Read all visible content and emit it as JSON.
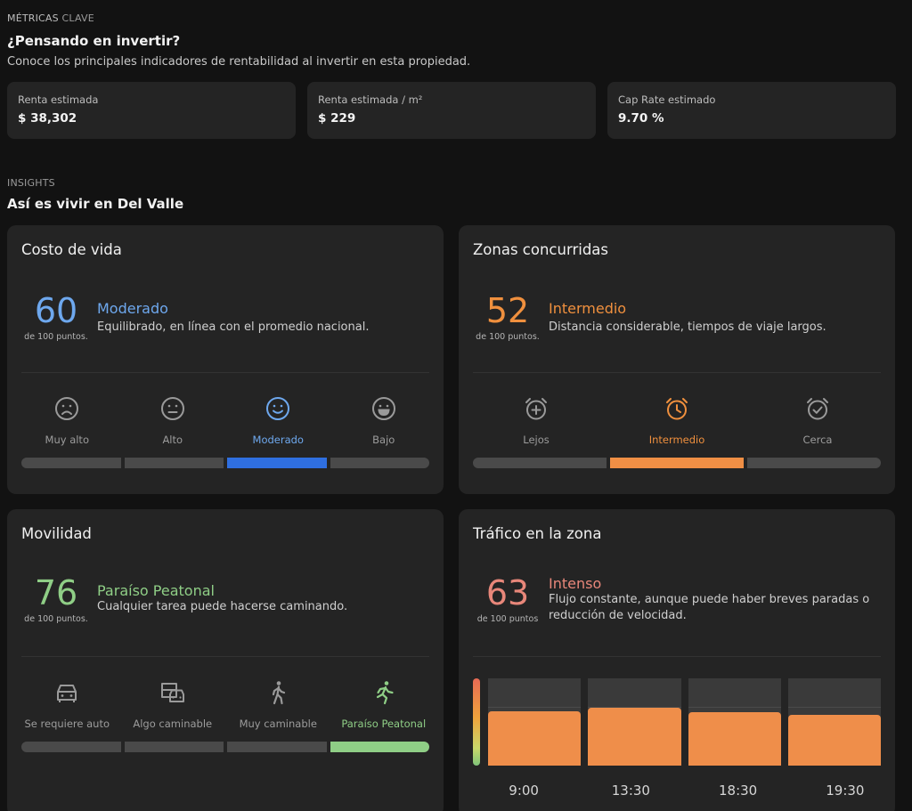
{
  "metrics": {
    "eyebrow_main": "MÉTRICAS",
    "eyebrow_rest": "CLAVE",
    "title": "¿Pensando en invertir?",
    "description": "Conoce los principales indicadores de rentabilidad al invertir en esta propiedad.",
    "items": [
      {
        "label": "Renta estimada",
        "value": "$ 38,302"
      },
      {
        "label": "Renta estimada / m²",
        "value": "$ 229"
      },
      {
        "label": "Cap Rate estimado",
        "value": "9.70 %"
      }
    ]
  },
  "insights": {
    "eyebrow": "INSIGHTS",
    "title": "Así es vivir en Del Valle"
  },
  "cards": {
    "costo": {
      "title": "Costo de vida",
      "score": "60",
      "score_of": "de 100 puntos.",
      "level": "Moderado",
      "description": "Equilibrado, en línea con el promedio nacional.",
      "color": "#6ea8ee",
      "active_color": "#2f6fe0",
      "options": [
        {
          "label": "Muy alto",
          "icon": "sad-face-icon"
        },
        {
          "label": "Alto",
          "icon": "neutral-face-icon"
        },
        {
          "label": "Moderado",
          "icon": "smile-face-icon"
        },
        {
          "label": "Bajo",
          "icon": "grin-face-icon"
        }
      ],
      "active_index": 2
    },
    "zonas": {
      "title": "Zonas concurridas",
      "score": "52",
      "score_of": "de 100 puntos.",
      "level": "Intermedio",
      "description": "Distancia considerable, tiempos de viaje largos.",
      "color": "#f0903e",
      "active_color": "#f08f45",
      "options": [
        {
          "label": "Lejos",
          "icon": "alarm-plus-icon"
        },
        {
          "label": "Intermedio",
          "icon": "alarm-clock-icon"
        },
        {
          "label": "Cerca",
          "icon": "alarm-check-icon"
        }
      ],
      "active_index": 1
    },
    "movilidad": {
      "title": "Movilidad",
      "score": "76",
      "score_of": "de 100 puntos.",
      "level": "Paraíso Peatonal",
      "description": "Cualquier tarea puede hacerse caminando.",
      "color": "#8fce86",
      "active_color": "#8fce86",
      "options": [
        {
          "label": "Se requiere auto",
          "icon": "car-icon"
        },
        {
          "label": "Algo caminable",
          "icon": "car-bus-icon"
        },
        {
          "label": "Muy caminable",
          "icon": "walking-icon"
        },
        {
          "label": "Paraíso Peatonal",
          "icon": "running-icon"
        }
      ],
      "active_index": 3
    },
    "trafico": {
      "title": "Tráfico en la zona",
      "score": "63",
      "score_of": "de 100 puntos",
      "level": "Intenso",
      "description": "Flujo constante, aunque puede haber breves paradas o reducción de velocidad.",
      "color": "#e8877a",
      "bar_color": "#ef8e4a"
    }
  },
  "chart_data": {
    "type": "bar",
    "categories": [
      "9:00",
      "13:30",
      "18:30",
      "19:30"
    ],
    "values": [
      62,
      66,
      61,
      58
    ],
    "ylim": [
      0,
      100
    ],
    "grid": true
  }
}
